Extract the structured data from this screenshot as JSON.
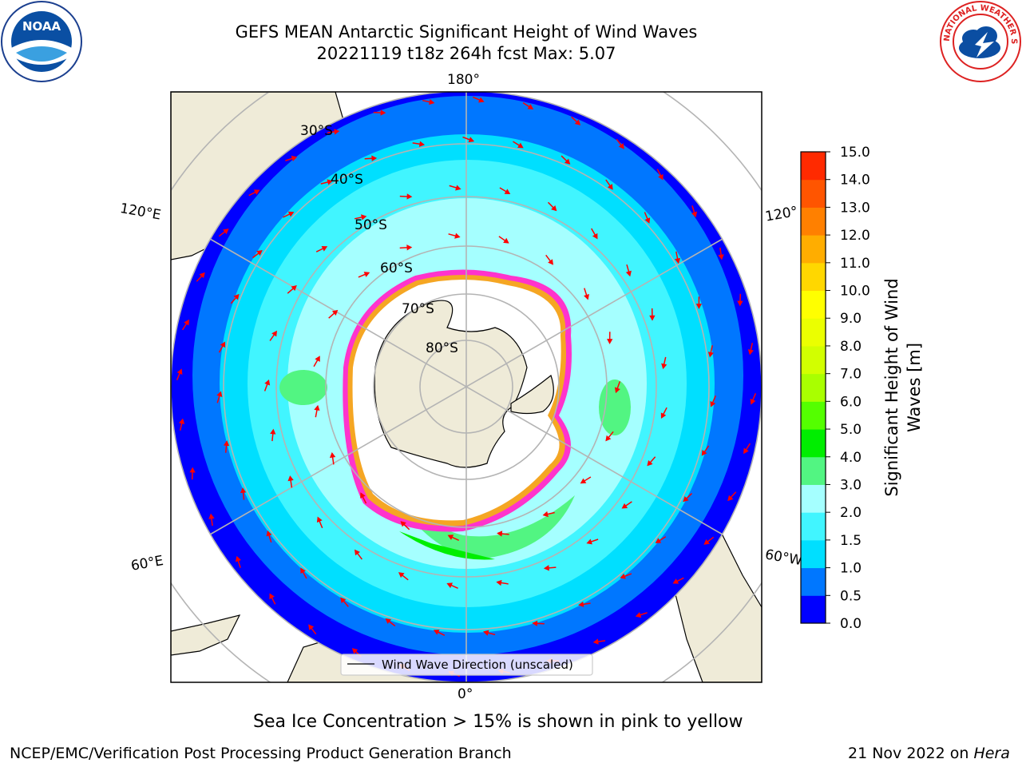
{
  "title": {
    "line1": "GEFS MEAN Antarctic Significant Height of Wind Waves",
    "line2": "20221119 t18z 264h fcst   Max: 5.07"
  },
  "logos": {
    "left": {
      "name": "NOAA",
      "text": "NOAA"
    },
    "right": {
      "name": "NATIONAL WEATHER SERVICE",
      "text": "NATIONAL WEATHER SERVICE"
    }
  },
  "map": {
    "projection": "south polar stereographic",
    "longitude_labels": {
      "top": "180°",
      "bottom": "0°",
      "left_upper": "120°E",
      "right_upper": "120°",
      "left_lower": "60°E",
      "right_lower": "60°W"
    },
    "latitude_labels": [
      "30°S",
      "40°S",
      "50°S",
      "60°S",
      "70°S",
      "80°S"
    ],
    "legend": "Wind Wave Direction (unscaled)",
    "colors": {
      "land": "#efebd8",
      "ice": "#ffffff",
      "ice_edge": "#ff33cc",
      "ice_edge_yellow": "#f5a623",
      "grid": "#b4b4b4",
      "arrow": "#ff0000"
    }
  },
  "colorbar": {
    "label_line1": "Significant Height of Wind",
    "label_line2": "Waves [m]",
    "ticks": [
      "0.0",
      "0.5",
      "1.0",
      "1.5",
      "2.0",
      "3.0",
      "4.0",
      "5.0",
      "6.0",
      "7.0",
      "8.0",
      "9.0",
      "10.0",
      "11.0",
      "12.0",
      "13.0",
      "14.0",
      "15.0"
    ],
    "colors": [
      "#0000ff",
      "#0077ff",
      "#00dfff",
      "#41f5ff",
      "#a5ffff",
      "#52f582",
      "#00ee00",
      "#54ff00",
      "#a9ff00",
      "#d2ff00",
      "#ebff00",
      "#ffff00",
      "#ffd700",
      "#ffad00",
      "#ff8000",
      "#ff5500",
      "#ff2a00",
      "#ff0000"
    ]
  },
  "sea_ice_note": "Sea Ice Concentration > 15% is shown in pink to yellow",
  "footer": {
    "left": "NCEP/EMC/Verification Post Processing Product Generation Branch",
    "right_date": "21 Nov 2022 on ",
    "right_host": "Hera"
  }
}
